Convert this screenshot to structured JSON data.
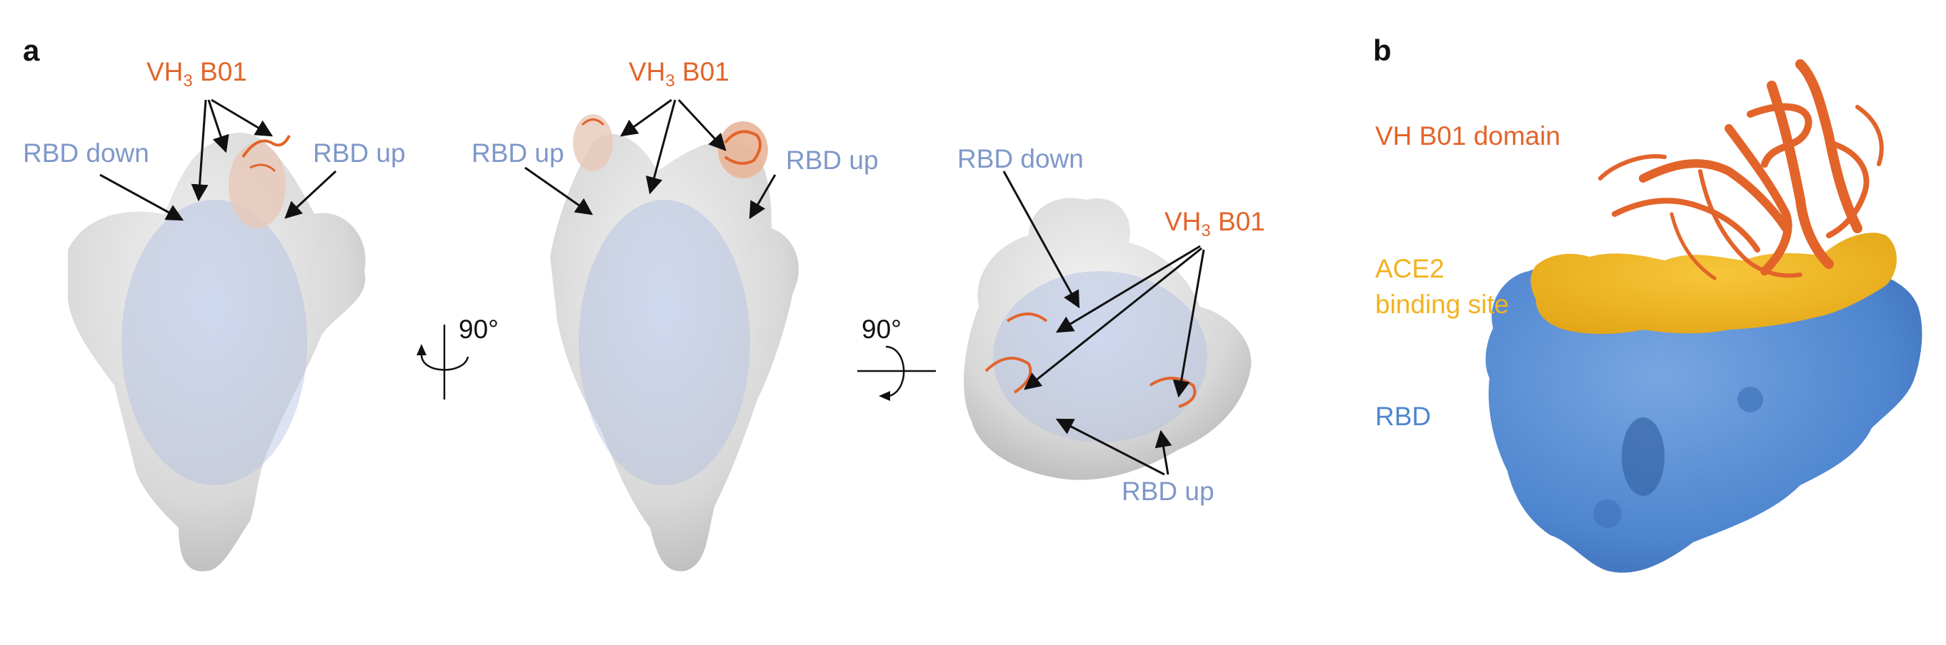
{
  "figure": {
    "panel_a": {
      "letter": "a",
      "view1": {
        "vh_label": "VH",
        "vh_sub": "3",
        "vh_rest": " B01",
        "rbd_down": "RBD down",
        "rbd_up": "RBD up"
      },
      "rotation1": "90°",
      "view2": {
        "vh_label": "VH",
        "vh_sub": "3",
        "vh_rest": " B01",
        "rbd_up_left": "RBD up",
        "rbd_up_right": "RBD up"
      },
      "rotation2": "90°",
      "view3": {
        "rbd_down": "RBD down",
        "vh_label": "VH",
        "vh_sub": "3",
        "vh_rest": " B01",
        "rbd_up": "RBD up"
      }
    },
    "panel_b": {
      "letter": "b",
      "vh_domain": "VH B01 domain",
      "ace2_line1": "ACE2",
      "ace2_line2": "binding site",
      "rbd": "RBD"
    },
    "colors": {
      "map_grey": "#dadada",
      "rbd_blue": "#7f97c9",
      "vh_orange": "#e2642a",
      "ace2_yellow": "#f2b21e",
      "surface_blue": "#4f86cf"
    }
  }
}
